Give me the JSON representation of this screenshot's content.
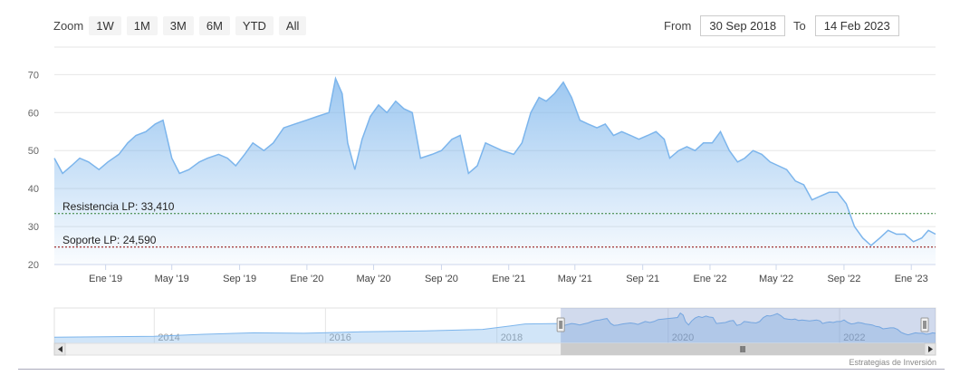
{
  "toolbar": {
    "zoom_label": "Zoom",
    "buttons": [
      "1W",
      "1M",
      "3M",
      "6M",
      "YTD",
      "All"
    ],
    "from_label": "From",
    "from_value": "30 Sep 2018",
    "to_label": "To",
    "to_value": "14 Feb 2023"
  },
  "credits": "Estrategias de Inversión",
  "colors": {
    "line": "#7cb5ec",
    "fill_top": "#7cb5ec",
    "resistance": "#2e7d32",
    "support": "#8b0000",
    "navigator_mask": "#6685c2"
  },
  "chart_data": {
    "type": "area",
    "ylim": [
      20,
      72
    ],
    "y_ticks": [
      20,
      30,
      40,
      50,
      60,
      70
    ],
    "x_ticks": [
      {
        "date": "2019-01-01",
        "label": "Ene '19"
      },
      {
        "date": "2019-05-01",
        "label": "May '19"
      },
      {
        "date": "2019-09-01",
        "label": "Sep '19"
      },
      {
        "date": "2020-01-01",
        "label": "Ene '20"
      },
      {
        "date": "2020-05-01",
        "label": "May '20"
      },
      {
        "date": "2020-09-01",
        "label": "Sep '20"
      },
      {
        "date": "2021-01-01",
        "label": "Ene '21"
      },
      {
        "date": "2021-05-01",
        "label": "May '21"
      },
      {
        "date": "2021-09-01",
        "label": "Sep '21"
      },
      {
        "date": "2022-01-01",
        "label": "Ene '22"
      },
      {
        "date": "2022-05-01",
        "label": "May '22"
      },
      {
        "date": "2022-09-01",
        "label": "Sep '22"
      },
      {
        "date": "2023-01-01",
        "label": "Ene '23"
      }
    ],
    "x_range": [
      "2018-09-30",
      "2023-02-14"
    ],
    "grid": true,
    "series": [
      {
        "points": [
          [
            "2018-09-30",
            48
          ],
          [
            "2018-10-15",
            44
          ],
          [
            "2018-10-31",
            46
          ],
          [
            "2018-11-15",
            48
          ],
          [
            "2018-12-01",
            47
          ],
          [
            "2018-12-20",
            45
          ],
          [
            "2019-01-05",
            47
          ],
          [
            "2019-01-25",
            49
          ],
          [
            "2019-02-10",
            52
          ],
          [
            "2019-02-25",
            54
          ],
          [
            "2019-03-15",
            55
          ],
          [
            "2019-04-01",
            57
          ],
          [
            "2019-04-15",
            58
          ],
          [
            "2019-05-01",
            48
          ],
          [
            "2019-05-15",
            44
          ],
          [
            "2019-06-01",
            45
          ],
          [
            "2019-06-20",
            47
          ],
          [
            "2019-07-05",
            48
          ],
          [
            "2019-07-25",
            49
          ],
          [
            "2019-08-10",
            48
          ],
          [
            "2019-08-25",
            46
          ],
          [
            "2019-09-10",
            49
          ],
          [
            "2019-09-25",
            52
          ],
          [
            "2019-10-15",
            50
          ],
          [
            "2019-11-01",
            52
          ],
          [
            "2019-11-20",
            56
          ],
          [
            "2019-12-10",
            57
          ],
          [
            "2019-12-31",
            58
          ],
          [
            "2020-01-20",
            59
          ],
          [
            "2020-02-10",
            60
          ],
          [
            "2020-02-22",
            69
          ],
          [
            "2020-03-05",
            65
          ],
          [
            "2020-03-15",
            52
          ],
          [
            "2020-03-28",
            45
          ],
          [
            "2020-04-10",
            53
          ],
          [
            "2020-04-25",
            59
          ],
          [
            "2020-05-10",
            62
          ],
          [
            "2020-05-25",
            60
          ],
          [
            "2020-06-10",
            63
          ],
          [
            "2020-06-25",
            61
          ],
          [
            "2020-07-10",
            60
          ],
          [
            "2020-07-25",
            48
          ],
          [
            "2020-08-15",
            49
          ],
          [
            "2020-09-01",
            50
          ],
          [
            "2020-09-20",
            53
          ],
          [
            "2020-10-05",
            54
          ],
          [
            "2020-10-20",
            44
          ],
          [
            "2020-11-05",
            46
          ],
          [
            "2020-11-20",
            52
          ],
          [
            "2020-12-05",
            51
          ],
          [
            "2020-12-20",
            50
          ],
          [
            "2021-01-10",
            49
          ],
          [
            "2021-01-25",
            52
          ],
          [
            "2021-02-10",
            60
          ],
          [
            "2021-02-25",
            64
          ],
          [
            "2021-03-10",
            63
          ],
          [
            "2021-03-25",
            65
          ],
          [
            "2021-04-10",
            68
          ],
          [
            "2021-04-25",
            64
          ],
          [
            "2021-05-10",
            58
          ],
          [
            "2021-05-25",
            57
          ],
          [
            "2021-06-10",
            56
          ],
          [
            "2021-06-25",
            57
          ],
          [
            "2021-07-10",
            54
          ],
          [
            "2021-07-25",
            55
          ],
          [
            "2021-08-10",
            54
          ],
          [
            "2021-08-25",
            53
          ],
          [
            "2021-09-10",
            54
          ],
          [
            "2021-09-25",
            55
          ],
          [
            "2021-10-10",
            53
          ],
          [
            "2021-10-20",
            48
          ],
          [
            "2021-11-05",
            50
          ],
          [
            "2021-11-20",
            51
          ],
          [
            "2021-12-05",
            50
          ],
          [
            "2021-12-20",
            52
          ],
          [
            "2022-01-05",
            52
          ],
          [
            "2022-01-20",
            55
          ],
          [
            "2022-02-05",
            50
          ],
          [
            "2022-02-20",
            47
          ],
          [
            "2022-03-05",
            48
          ],
          [
            "2022-03-20",
            50
          ],
          [
            "2022-04-05",
            49
          ],
          [
            "2022-04-20",
            47
          ],
          [
            "2022-05-05",
            46
          ],
          [
            "2022-05-20",
            45
          ],
          [
            "2022-06-05",
            42
          ],
          [
            "2022-06-20",
            41
          ],
          [
            "2022-07-05",
            37
          ],
          [
            "2022-07-20",
            38
          ],
          [
            "2022-08-05",
            39
          ],
          [
            "2022-08-20",
            39
          ],
          [
            "2022-09-05",
            36
          ],
          [
            "2022-09-20",
            30
          ],
          [
            "2022-10-05",
            27
          ],
          [
            "2022-10-20",
            25
          ],
          [
            "2022-11-05",
            27
          ],
          [
            "2022-11-20",
            29
          ],
          [
            "2022-12-05",
            28
          ],
          [
            "2022-12-20",
            28
          ],
          [
            "2023-01-05",
            26
          ],
          [
            "2023-01-20",
            27
          ],
          [
            "2023-02-01",
            29
          ],
          [
            "2023-02-14",
            28
          ]
        ]
      }
    ],
    "plot_lines": [
      {
        "name": "resistance",
        "label": "Resistencia LP: 33,410",
        "value": 33.41
      },
      {
        "name": "support",
        "label": "Soporte LP: 24,590",
        "value": 24.59
      }
    ],
    "navigator": {
      "year_labels": [
        "2014",
        "2016",
        "2018",
        "2020",
        "2022"
      ],
      "years": [
        2014,
        2016,
        2018,
        2020,
        2022
      ],
      "history": [
        [
          "2012-11-01",
          20
        ],
        [
          "2013-06-01",
          21
        ],
        [
          "2014-01-01",
          22
        ],
        [
          "2014-08-01",
          26
        ],
        [
          "2015-03-01",
          29
        ],
        [
          "2015-10-01",
          28
        ],
        [
          "2016-06-01",
          31
        ],
        [
          "2017-03-01",
          33
        ],
        [
          "2017-11-01",
          36
        ],
        [
          "2018-03-01",
          43
        ],
        [
          "2018-05-01",
          47
        ],
        [
          "2018-09-30",
          48
        ]
      ]
    }
  }
}
